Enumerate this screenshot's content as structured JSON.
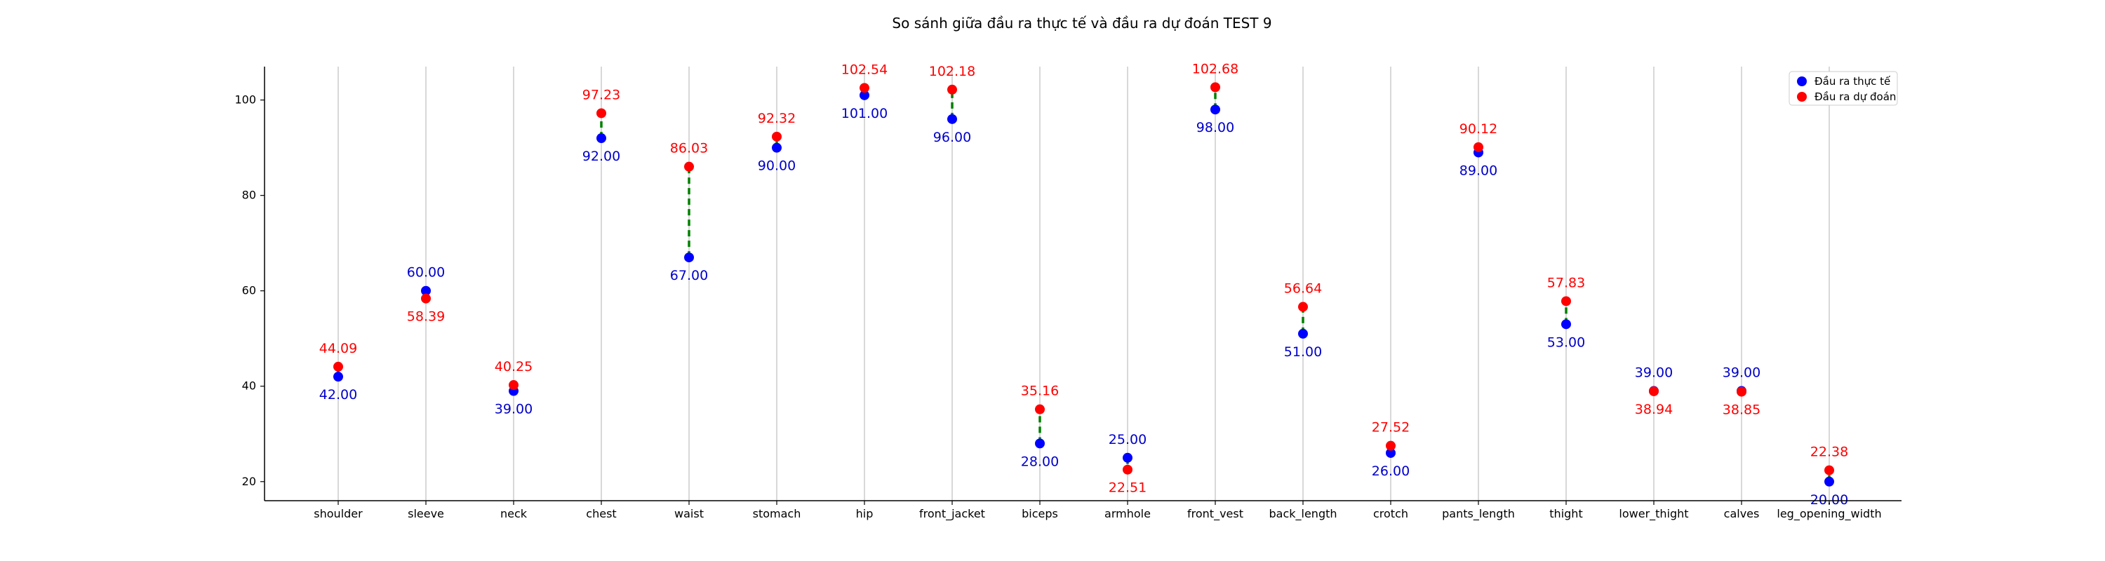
{
  "chart_data": {
    "type": "scatter",
    "title": "So sánh giữa đầu ra thực tế và đầu ra dự đoán TEST 9",
    "xlabel": "",
    "ylabel": "",
    "ylim": [
      16,
      107
    ],
    "yticks": [
      20,
      40,
      60,
      80,
      100
    ],
    "grid": "vertical",
    "legend_position": "top-right",
    "categories": [
      "shoulder",
      "sleeve",
      "neck",
      "chest",
      "waist",
      "stomach",
      "hip",
      "front_jacket",
      "biceps",
      "armhole",
      "front_vest",
      "back_length",
      "crotch",
      "pants_length",
      "thight",
      "lower_thight",
      "calves",
      "leg_opening_width"
    ],
    "series": [
      {
        "name": "Đầu ra thực tế",
        "color": "#0000ff",
        "values": [
          42.0,
          60.0,
          39.0,
          92.0,
          67.0,
          90.0,
          101.0,
          96.0,
          28.0,
          25.0,
          98.0,
          51.0,
          26.0,
          89.0,
          53.0,
          39.0,
          39.0,
          20.0
        ],
        "labels": [
          "42.00",
          "60.00",
          "39.00",
          "92.00",
          "67.00",
          "90.00",
          "101.00",
          "96.00",
          "28.00",
          "25.00",
          "98.00",
          "51.00",
          "26.00",
          "89.00",
          "53.00",
          "39.00",
          "39.00",
          "20.00"
        ]
      },
      {
        "name": "Đầu ra dự đoán",
        "color": "#ff0000",
        "values": [
          44.09,
          58.39,
          40.25,
          97.23,
          86.03,
          92.32,
          102.54,
          102.18,
          35.16,
          22.51,
          102.68,
          56.64,
          27.52,
          90.12,
          57.83,
          38.94,
          38.85,
          22.38
        ],
        "labels": [
          "44.09",
          "58.39",
          "40.25",
          "97.23",
          "86.03",
          "92.32",
          "102.54",
          "102.18",
          "35.16",
          "22.51",
          "102.68",
          "56.64",
          "27.52",
          "90.12",
          "57.83",
          "38.94",
          "38.85",
          "22.38"
        ]
      }
    ],
    "connector_color": "#008000"
  }
}
